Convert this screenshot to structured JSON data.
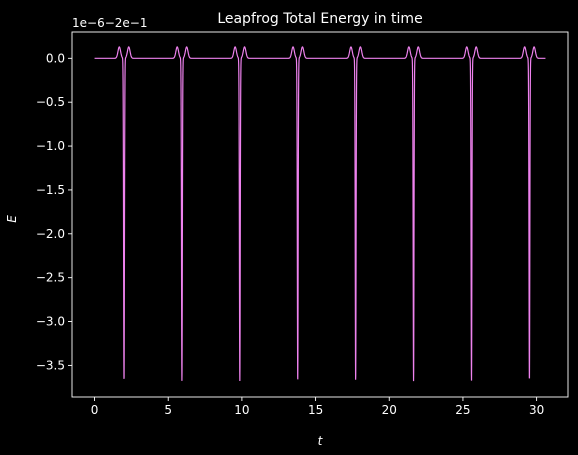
{
  "chart_data": {
    "type": "line",
    "title": "Leapfrog Total Energy in time",
    "xlabel": "t",
    "ylabel": "E",
    "offset_label": "1e−6−2e−1",
    "xlim": [
      -1.53,
      32.13
    ],
    "ylim": [
      -3.86,
      0.3
    ],
    "xticks": [
      0,
      5,
      10,
      15,
      20,
      25,
      30
    ],
    "xtick_labels": [
      "0",
      "5",
      "10",
      "15",
      "20",
      "25",
      "30"
    ],
    "yticks": [
      0.0,
      -0.5,
      -1.0,
      -1.5,
      -2.0,
      -2.5,
      -3.0,
      -3.5
    ],
    "ytick_labels": [
      "0.0",
      "−0.5",
      "−1.0",
      "−1.5",
      "−2.0",
      "−2.5",
      "−3.0",
      "−3.5"
    ],
    "grid": false,
    "colors": {
      "background": "#000000",
      "line": "#ee82ee",
      "axes": "#ffffff"
    },
    "series": [
      {
        "t_range": [
          0,
          30.6
        ],
        "baseline": 0.0,
        "period": 3.93,
        "first_dip_t": 2.0,
        "dip_min": -3.68,
        "peak_max": 0.13,
        "dip_times": [
          2.0,
          5.93,
          9.86,
          13.79,
          17.72,
          21.65,
          25.58,
          29.51
        ]
      }
    ]
  }
}
